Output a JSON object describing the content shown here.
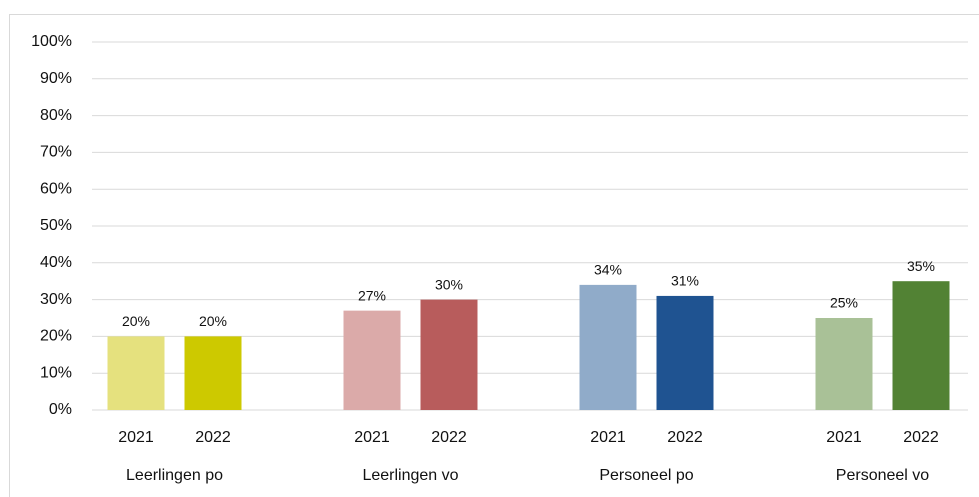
{
  "chart_data": {
    "type": "grouped-bar",
    "groups": [
      {
        "name": "Leerlingen po",
        "categories": [
          "2021",
          "2022"
        ],
        "values": [
          20,
          20
        ],
        "value_labels": [
          "20%",
          "20%"
        ],
        "colors": [
          "#e5e17e",
          "#cdc900"
        ]
      },
      {
        "name": "Leerlingen vo",
        "categories": [
          "2021",
          "2022"
        ],
        "values": [
          27,
          30
        ],
        "value_labels": [
          "27%",
          "30%"
        ],
        "colors": [
          "#dbaaa9",
          "#b85c5c"
        ]
      },
      {
        "name": "Personeel po",
        "categories": [
          "2021",
          "2022"
        ],
        "values": [
          34,
          31
        ],
        "value_labels": [
          "34%",
          "31%"
        ],
        "colors": [
          "#90abc9",
          "#1f5391"
        ]
      },
      {
        "name": "Personeel vo",
        "categories": [
          "2021",
          "2022"
        ],
        "values": [
          25,
          35
        ],
        "value_labels": [
          "25%",
          "35%"
        ],
        "colors": [
          "#a9c197",
          "#528234"
        ]
      }
    ],
    "ylim": [
      0,
      100
    ],
    "yticks": [
      {
        "value": 0,
        "label": "0%"
      },
      {
        "value": 10,
        "label": "10%"
      },
      {
        "value": 20,
        "label": "20%"
      },
      {
        "value": 30,
        "label": "30%"
      },
      {
        "value": 40,
        "label": "40%"
      },
      {
        "value": 50,
        "label": "50%"
      },
      {
        "value": 60,
        "label": "60%"
      },
      {
        "value": 70,
        "label": "70%"
      },
      {
        "value": 80,
        "label": "80%"
      },
      {
        "value": 90,
        "label": "90%"
      },
      {
        "value": 100,
        "label": "100%"
      }
    ],
    "grid": true
  }
}
